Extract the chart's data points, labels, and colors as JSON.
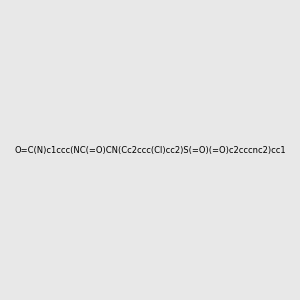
{
  "smiles": "O=C(N)c1ccc(NC(=O)CN(Cc2ccc(Cl)cc2)S(=O)(=O)c2cccnc2)cc1",
  "image_size": 300,
  "background_color": "#e8e8e8"
}
